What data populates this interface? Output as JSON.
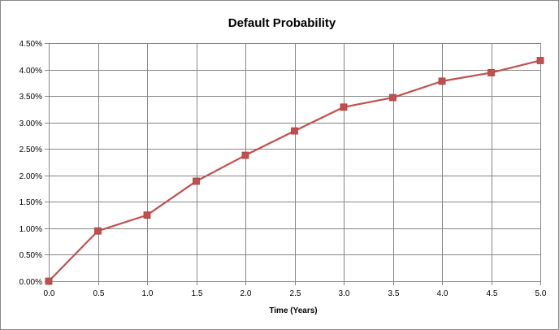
{
  "chart_data": {
    "type": "line",
    "title": "Default Probability",
    "xlabel": "Time (Years)",
    "ylabel": "",
    "x": [
      0.0,
      0.5,
      1.0,
      1.5,
      2.0,
      2.5,
      3.0,
      3.5,
      4.0,
      4.5,
      5.0
    ],
    "x_tick_labels": [
      "0.0",
      "0.5",
      "1.0",
      "1.5",
      "2.0",
      "2.5",
      "3.0",
      "3.5",
      "4.0",
      "4.5",
      "5.0"
    ],
    "y_tick_values": [
      0,
      0.005,
      0.01,
      0.015,
      0.02,
      0.025,
      0.03,
      0.035,
      0.04,
      0.045
    ],
    "y_tick_labels": [
      "0.00%",
      "0.50%",
      "1.00%",
      "1.50%",
      "2.00%",
      "2.50%",
      "3.00%",
      "3.50%",
      "4.00%",
      "4.50%"
    ],
    "xlim": [
      0,
      5
    ],
    "ylim": [
      0,
      0.045
    ],
    "grid": true,
    "legend": "none",
    "series": [
      {
        "values": [
          0.0,
          0.0095,
          0.0125,
          0.0189,
          0.0238,
          0.0284,
          0.0329,
          0.0347,
          0.0378,
          0.0394,
          0.0417
        ],
        "color": "#C0504D",
        "marker": "square"
      }
    ]
  }
}
